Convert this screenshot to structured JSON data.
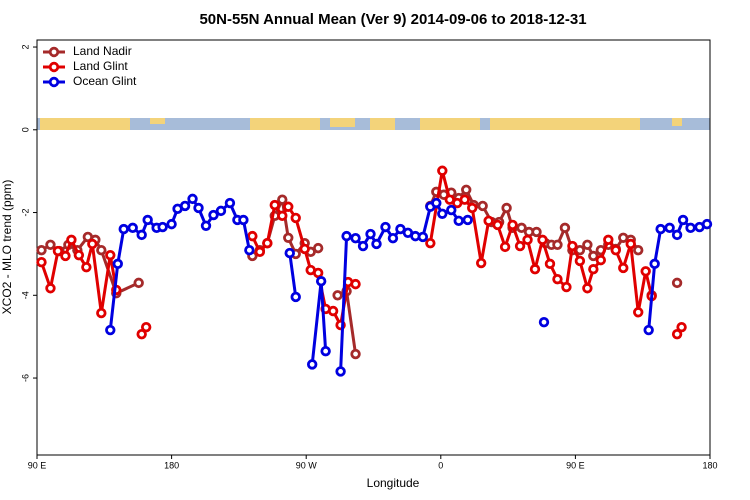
{
  "chart_data": {
    "type": "line",
    "title": "50N-55N Annual Mean (Ver 9)   2014-09-06 to 2018-12-31",
    "x_label": "Longitude",
    "y_label": "XCO2 - MLO trend (ppm)",
    "xlim": [
      90,
      540
    ],
    "ylim": [
      -7.86,
      2.17
    ],
    "xticks": [
      {
        "value": 90,
        "label": "90 E"
      },
      180,
      {
        "value": 270,
        "label": "90 W"
      },
      {
        "value": 360,
        "label": "0"
      },
      {
        "value": 450,
        "label": "90 E"
      },
      {
        "value": 540,
        "label": "180"
      }
    ],
    "yticks": [
      2,
      0,
      -2,
      -4,
      -6
    ],
    "legend": "upper left",
    "series": [
      {
        "name": "Land Nadir",
        "color": "#a52a2a",
        "x": [
          93,
          99,
          105,
          111,
          117,
          124,
          129,
          133,
          143,
          158,
          null,
          234,
          239,
          244,
          249,
          254,
          258,
          263,
          269,
          273,
          278,
          null,
          291,
          297,
          303,
          null,
          353,
          357,
          362,
          367,
          372,
          377,
          382,
          388,
          394,
          399,
          404,
          408,
          414,
          419,
          424,
          430,
          434,
          438,
          443,
          448,
          453,
          458,
          462,
          467,
          472,
          477,
          482,
          487,
          492,
          null,
          501,
          null,
          518
        ],
        "values": [
          -2.91,
          -2.78,
          -2.93,
          -2.78,
          -2.91,
          -2.59,
          -2.66,
          -2.91,
          -3.95,
          -3.7,
          null,
          -3.05,
          -2.91,
          -2.74,
          -2.08,
          -1.69,
          -2.61,
          -3.0,
          -2.74,
          -2.95,
          -2.86,
          null,
          -4.0,
          -3.9,
          -5.42,
          null,
          -1.84,
          -1.5,
          -1.57,
          -1.52,
          -1.65,
          -1.45,
          -1.82,
          -1.84,
          -2.23,
          -2.23,
          -1.89,
          -2.37,
          -2.37,
          -2.47,
          -2.47,
          -2.74,
          -2.78,
          -2.78,
          -2.37,
          -2.91,
          -2.91,
          -2.78,
          -3.05,
          -2.91,
          -2.78,
          -2.88,
          -2.61,
          -2.66,
          -2.91,
          null,
          -4.0,
          null,
          -3.7
        ]
      },
      {
        "name": "Land Glint",
        "color": "#e00000",
        "x": [
          93,
          99,
          104,
          109,
          113,
          118,
          123,
          127,
          133,
          139,
          143,
          null,
          160,
          163,
          null,
          234,
          239,
          244,
          249,
          254,
          258,
          263,
          269,
          273,
          278,
          283,
          288,
          293,
          298,
          303,
          null,
          353,
          361,
          366,
          371,
          376,
          381,
          387,
          392,
          398,
          403,
          408,
          413,
          418,
          423,
          428,
          433,
          438,
          444,
          448,
          453,
          458,
          462,
          467,
          472,
          477,
          482,
          487,
          492,
          497,
          501,
          null,
          518,
          521
        ],
        "values": [
          -3.2,
          -3.83,
          -2.93,
          -3.05,
          -2.66,
          -3.03,
          -3.32,
          -2.76,
          -4.43,
          -3.03,
          -3.87,
          null,
          -4.94,
          -4.77,
          null,
          -2.57,
          -2.95,
          -2.74,
          -1.82,
          -2.08,
          -1.86,
          -2.13,
          -2.88,
          -3.39,
          -3.46,
          -4.33,
          -4.38,
          -4.72,
          -3.68,
          -3.73,
          null,
          -2.74,
          -0.99,
          -1.69,
          -1.77,
          -1.69,
          -1.89,
          -3.22,
          -2.2,
          -2.3,
          -2.83,
          -2.3,
          -2.81,
          -2.66,
          -3.37,
          -2.66,
          -3.24,
          -3.61,
          -3.8,
          -2.81,
          -3.17,
          -3.83,
          -3.37,
          -3.15,
          -2.66,
          -2.91,
          -3.34,
          -2.76,
          -4.41,
          -3.42,
          -4.02,
          null,
          -4.94,
          -4.77
        ]
      },
      {
        "name": "Ocean Glint",
        "color": "#0000e0",
        "x": [
          139,
          144,
          148,
          154,
          160,
          164,
          170,
          174,
          180,
          184,
          189,
          194,
          198,
          203,
          208,
          213,
          219,
          224,
          228,
          232,
          null,
          259,
          263,
          null,
          274,
          280,
          283,
          null,
          293,
          297,
          303,
          308,
          313,
          317,
          323,
          328,
          333,
          338,
          343,
          348,
          353,
          357,
          361,
          367,
          372,
          378,
          null,
          429,
          null,
          499,
          503,
          507,
          513,
          518,
          522,
          527,
          533,
          538
        ],
        "values": [
          -4.84,
          -3.24,
          -2.4,
          -2.37,
          -2.54,
          -2.18,
          -2.37,
          -2.35,
          -2.28,
          -1.91,
          -1.84,
          -1.67,
          -1.89,
          -2.32,
          -2.06,
          -1.96,
          -1.77,
          -2.18,
          -2.18,
          -2.91,
          null,
          -2.98,
          -4.04,
          null,
          -5.67,
          -3.66,
          -5.35,
          null,
          -5.84,
          -2.57,
          -2.62,
          -2.81,
          -2.52,
          -2.76,
          -2.35,
          -2.62,
          -2.4,
          -2.49,
          -2.57,
          -2.59,
          -1.86,
          -1.77,
          -2.03,
          -1.94,
          -2.2,
          -2.18,
          null,
          -4.65,
          null,
          -4.84,
          -3.24,
          -2.4,
          -2.37,
          -2.54,
          -2.18,
          -2.37,
          -2.35,
          -2.28
        ]
      }
    ]
  }
}
